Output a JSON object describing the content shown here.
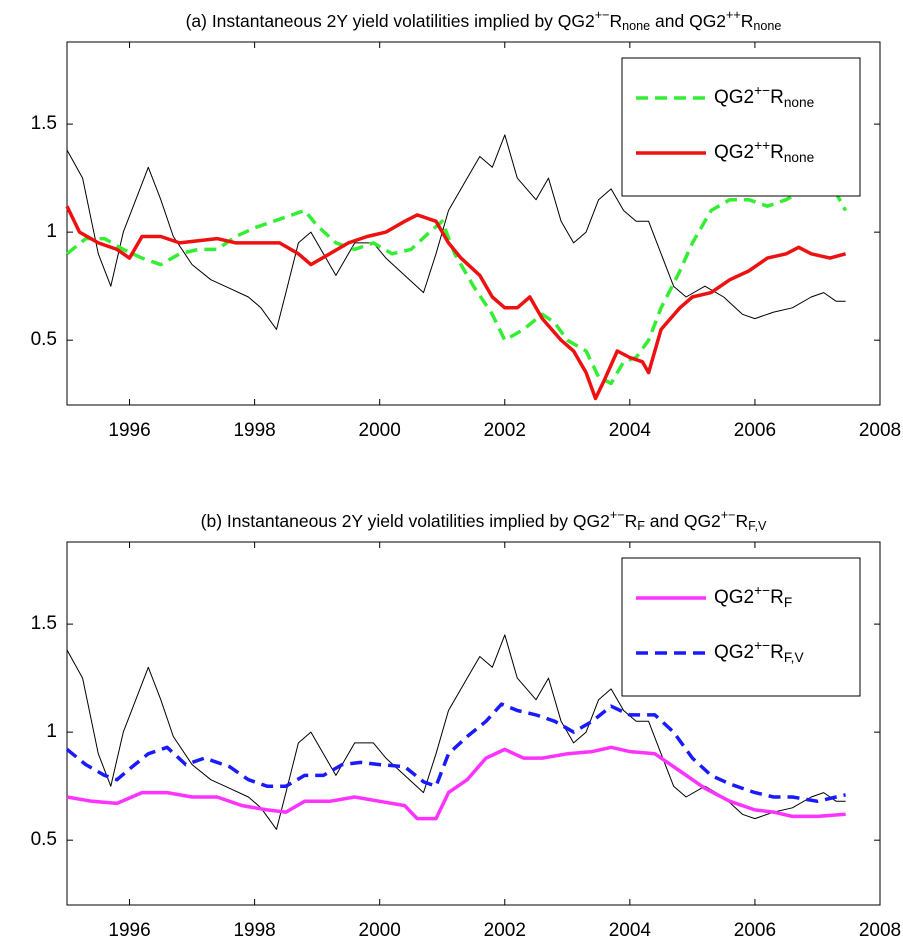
{
  "chart_data": [
    {
      "type": "line",
      "title": [
        {
          "text": "(a) Instantaneous 2Y yield volatilities implied by QG2"
        },
        {
          "sup": "+−"
        },
        {
          "text": "R"
        },
        {
          "sub": "none"
        },
        {
          "text": " and QG2"
        },
        {
          "sup": "++"
        },
        {
          "text": "R"
        },
        {
          "sub": "none"
        }
      ],
      "xlim": [
        1995,
        2008
      ],
      "xticks": [
        1996,
        1998,
        2000,
        2002,
        2004,
        2006,
        2008
      ],
      "ylim": [
        0.2,
        1.88
      ],
      "yticks": [
        0.5,
        1,
        1.5
      ],
      "legend": "upper right",
      "series": [
        {
          "color": "#000000",
          "linestyle": "solid",
          "x": [
            1995.0,
            1995.25,
            1995.5,
            1995.7,
            1995.9,
            1996.1,
            1996.3,
            1996.5,
            1996.7,
            1997.0,
            1997.3,
            1997.6,
            1997.9,
            1998.1,
            1998.35,
            1998.5,
            1998.7,
            1998.9,
            1999.1,
            1999.3,
            1999.6,
            1999.9,
            2000.1,
            2000.4,
            2000.7,
            2000.9,
            2001.1,
            2001.4,
            2001.6,
            2001.8,
            2002.0,
            2002.2,
            2002.5,
            2002.7,
            2002.9,
            2003.1,
            2003.3,
            2003.5,
            2003.7,
            2003.9,
            2004.1,
            2004.3,
            2004.5,
            2004.7,
            2004.9,
            2005.2,
            2005.5,
            2005.8,
            2006.0,
            2006.3,
            2006.6,
            2006.9,
            2007.1,
            2007.3,
            2007.45
          ],
          "values": [
            1.38,
            1.25,
            0.9,
            0.75,
            1.0,
            1.15,
            1.3,
            1.15,
            0.98,
            0.85,
            0.78,
            0.74,
            0.7,
            0.65,
            0.55,
            0.72,
            0.95,
            1.0,
            0.9,
            0.8,
            0.95,
            0.95,
            0.88,
            0.8,
            0.72,
            0.9,
            1.1,
            1.25,
            1.35,
            1.3,
            1.45,
            1.25,
            1.15,
            1.25,
            1.05,
            0.95,
            1.0,
            1.15,
            1.2,
            1.1,
            1.05,
            1.05,
            0.9,
            0.75,
            0.7,
            0.75,
            0.7,
            0.62,
            0.6,
            0.63,
            0.65,
            0.7,
            0.72,
            0.68,
            0.68
          ]
        },
        {
          "name": [
            {
              "text": "QG2"
            },
            {
              "sup": "+−"
            },
            {
              "text": "R"
            },
            {
              "sub": "none"
            }
          ],
          "color": "#33ee33",
          "linestyle": "dashed",
          "x": [
            1995.0,
            1995.3,
            1995.6,
            1995.9,
            1996.2,
            1996.5,
            1996.8,
            1997.1,
            1997.4,
            1997.7,
            1998.0,
            1998.3,
            1998.6,
            1998.8,
            1999.0,
            1999.3,
            1999.6,
            1999.9,
            2000.2,
            2000.5,
            2000.8,
            2001.0,
            2001.2,
            2001.5,
            2001.8,
            2002.0,
            2002.3,
            2002.6,
            2002.8,
            2003.0,
            2003.3,
            2003.5,
            2003.7,
            2003.9,
            2004.1,
            2004.3,
            2004.5,
            2004.8,
            2005.0,
            2005.3,
            2005.6,
            2005.9,
            2006.2,
            2006.5,
            2006.8,
            2007.1,
            2007.3,
            2007.45
          ],
          "values": [
            0.9,
            0.97,
            0.97,
            0.92,
            0.88,
            0.85,
            0.9,
            0.92,
            0.92,
            0.98,
            1.02,
            1.05,
            1.08,
            1.1,
            1.03,
            0.95,
            0.92,
            0.95,
            0.9,
            0.92,
            1.0,
            1.05,
            0.9,
            0.75,
            0.62,
            0.5,
            0.55,
            0.62,
            0.58,
            0.5,
            0.45,
            0.33,
            0.3,
            0.4,
            0.42,
            0.5,
            0.65,
            0.82,
            0.95,
            1.1,
            1.15,
            1.15,
            1.12,
            1.15,
            1.2,
            1.2,
            1.18,
            1.1
          ]
        },
        {
          "name": [
            {
              "text": "QG2"
            },
            {
              "sup": "++"
            },
            {
              "text": "R"
            },
            {
              "sub": "none"
            }
          ],
          "color": "#ee1111",
          "linestyle": "solid",
          "x": [
            1995.0,
            1995.2,
            1995.5,
            1995.8,
            1996.0,
            1996.2,
            1996.5,
            1996.8,
            1997.1,
            1997.4,
            1997.7,
            1998.0,
            1998.4,
            1998.7,
            1998.9,
            1999.2,
            1999.5,
            1999.8,
            2000.1,
            2000.4,
            2000.6,
            2000.9,
            2001.1,
            2001.3,
            2001.6,
            2001.8,
            2002.0,
            2002.2,
            2002.4,
            2002.6,
            2002.9,
            2003.1,
            2003.3,
            2003.45,
            2003.6,
            2003.8,
            2004.0,
            2004.2,
            2004.3,
            2004.5,
            2004.8,
            2005.0,
            2005.3,
            2005.6,
            2005.9,
            2006.2,
            2006.5,
            2006.7,
            2006.9,
            2007.2,
            2007.45
          ],
          "values": [
            1.12,
            1.0,
            0.95,
            0.92,
            0.88,
            0.98,
            0.98,
            0.95,
            0.96,
            0.97,
            0.95,
            0.95,
            0.95,
            0.9,
            0.85,
            0.9,
            0.95,
            0.98,
            1.0,
            1.05,
            1.08,
            1.05,
            0.95,
            0.88,
            0.8,
            0.7,
            0.65,
            0.65,
            0.7,
            0.6,
            0.5,
            0.45,
            0.35,
            0.23,
            0.32,
            0.45,
            0.42,
            0.4,
            0.35,
            0.55,
            0.65,
            0.7,
            0.72,
            0.78,
            0.82,
            0.88,
            0.9,
            0.93,
            0.9,
            0.88,
            0.9
          ]
        }
      ]
    },
    {
      "type": "line",
      "title": [
        {
          "text": "(b) Instantaneous 2Y yield volatilities implied by QG2"
        },
        {
          "sup": "+−"
        },
        {
          "text": "R"
        },
        {
          "sub": "F"
        },
        {
          "text": " and QG2"
        },
        {
          "sup": "+−"
        },
        {
          "text": "R"
        },
        {
          "sub": "F,V"
        }
      ],
      "xlim": [
        1995,
        2008
      ],
      "xticks": [
        1996,
        1998,
        2000,
        2002,
        2004,
        2006,
        2008
      ],
      "ylim": [
        0.2,
        1.88
      ],
      "yticks": [
        0.5,
        1,
        1.5
      ],
      "legend": "upper right",
      "series": [
        {
          "color": "#000000",
          "linestyle": "solid",
          "x": [
            1995.0,
            1995.25,
            1995.5,
            1995.7,
            1995.9,
            1996.1,
            1996.3,
            1996.5,
            1996.7,
            1997.0,
            1997.3,
            1997.6,
            1997.9,
            1998.1,
            1998.35,
            1998.5,
            1998.7,
            1998.9,
            1999.1,
            1999.3,
            1999.6,
            1999.9,
            2000.1,
            2000.4,
            2000.7,
            2000.9,
            2001.1,
            2001.4,
            2001.6,
            2001.8,
            2002.0,
            2002.2,
            2002.5,
            2002.7,
            2002.9,
            2003.1,
            2003.3,
            2003.5,
            2003.7,
            2003.9,
            2004.1,
            2004.3,
            2004.5,
            2004.7,
            2004.9,
            2005.2,
            2005.5,
            2005.8,
            2006.0,
            2006.3,
            2006.6,
            2006.9,
            2007.1,
            2007.3,
            2007.45
          ],
          "values": [
            1.38,
            1.25,
            0.9,
            0.75,
            1.0,
            1.15,
            1.3,
            1.15,
            0.98,
            0.85,
            0.78,
            0.74,
            0.7,
            0.65,
            0.55,
            0.72,
            0.95,
            1.0,
            0.9,
            0.8,
            0.95,
            0.95,
            0.88,
            0.8,
            0.72,
            0.9,
            1.1,
            1.25,
            1.35,
            1.3,
            1.45,
            1.25,
            1.15,
            1.25,
            1.05,
            0.95,
            1.0,
            1.15,
            1.2,
            1.1,
            1.05,
            1.05,
            0.9,
            0.75,
            0.7,
            0.75,
            0.7,
            0.62,
            0.6,
            0.63,
            0.65,
            0.7,
            0.72,
            0.68,
            0.68
          ]
        },
        {
          "name": [
            {
              "text": "QG2"
            },
            {
              "sup": "+−"
            },
            {
              "text": "R"
            },
            {
              "sub": "F"
            }
          ],
          "color": "#ff33ff",
          "linestyle": "solid",
          "x": [
            1995.0,
            1995.4,
            1995.8,
            1996.2,
            1996.6,
            1997.0,
            1997.4,
            1997.8,
            1998.2,
            1998.5,
            1998.8,
            1999.2,
            1999.6,
            2000.0,
            2000.4,
            2000.6,
            2000.9,
            2001.1,
            2001.4,
            2001.7,
            2002.0,
            2002.3,
            2002.6,
            2003.0,
            2003.4,
            2003.7,
            2004.0,
            2004.4,
            2004.8,
            2005.2,
            2005.6,
            2006.0,
            2006.3,
            2006.6,
            2007.0,
            2007.45
          ],
          "values": [
            0.7,
            0.68,
            0.67,
            0.72,
            0.72,
            0.7,
            0.7,
            0.66,
            0.64,
            0.63,
            0.68,
            0.68,
            0.7,
            0.68,
            0.66,
            0.6,
            0.6,
            0.72,
            0.78,
            0.88,
            0.92,
            0.88,
            0.88,
            0.9,
            0.91,
            0.93,
            0.91,
            0.9,
            0.82,
            0.74,
            0.68,
            0.64,
            0.63,
            0.61,
            0.61,
            0.62
          ]
        },
        {
          "name": [
            {
              "text": "QG2"
            },
            {
              "sup": "+−"
            },
            {
              "text": "R"
            },
            {
              "sub": "F,V"
            }
          ],
          "color": "#1a1aff",
          "linestyle": "dashed",
          "x": [
            1995.0,
            1995.3,
            1995.6,
            1995.8,
            1996.0,
            1996.3,
            1996.6,
            1996.9,
            1997.2,
            1997.6,
            1997.9,
            1998.2,
            1998.5,
            1998.8,
            1999.1,
            1999.4,
            1999.7,
            2000.0,
            2000.4,
            2000.7,
            2000.9,
            2001.1,
            2001.4,
            2001.7,
            2001.95,
            2002.2,
            2002.5,
            2002.8,
            2003.1,
            2003.4,
            2003.7,
            2004.0,
            2004.4,
            2004.7,
            2005.0,
            2005.3,
            2005.6,
            2006.0,
            2006.3,
            2006.6,
            2007.0,
            2007.45
          ],
          "values": [
            0.92,
            0.85,
            0.8,
            0.78,
            0.83,
            0.9,
            0.93,
            0.85,
            0.88,
            0.84,
            0.78,
            0.75,
            0.75,
            0.8,
            0.8,
            0.85,
            0.86,
            0.85,
            0.84,
            0.77,
            0.75,
            0.9,
            0.98,
            1.05,
            1.13,
            1.1,
            1.08,
            1.05,
            1.0,
            1.05,
            1.12,
            1.08,
            1.08,
            1.0,
            0.88,
            0.8,
            0.76,
            0.72,
            0.7,
            0.7,
            0.68,
            0.71
          ]
        }
      ]
    }
  ]
}
